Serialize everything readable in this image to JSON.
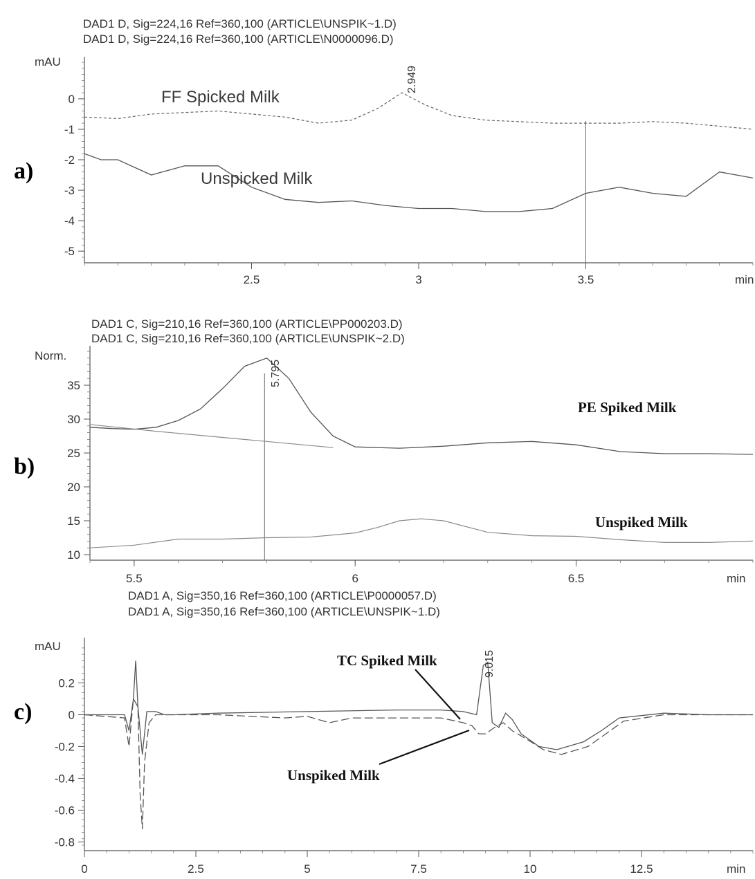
{
  "chart_data": [
    {
      "type": "line",
      "panel_label": "a)",
      "signal_lines": [
        "DAD1 D, Sig=224,16 Ref=360,100 (ARTICLE\\UNSPIK~1.D)",
        "DAD1 D, Sig=224,16 Ref=360,100 (ARTICLE\\N0000096.D)"
      ],
      "ylabel": "mAU",
      "xlabel": "min",
      "xlim": [
        2.0,
        4.0
      ],
      "ylim": [
        -5.2,
        1.2
      ],
      "x_ticks": [
        2.5,
        3,
        3.5
      ],
      "x_tick_labels": [
        "2.5",
        "3",
        "3.5"
      ],
      "y_ticks": [
        0,
        -1,
        -2,
        -3,
        -4,
        -5
      ],
      "y_tick_labels": [
        "0",
        "-1",
        "-2",
        "-3",
        "-4",
        "-5"
      ],
      "peaks": [
        {
          "rt": 2.949,
          "label": "2.949"
        }
      ],
      "marker_x": 3.5,
      "annotations": [
        "FF Spicked Milk",
        "Unspicked Milk"
      ],
      "series": [
        {
          "name": "FF Spicked Milk",
          "x": [
            2.0,
            2.1,
            2.2,
            2.3,
            2.4,
            2.5,
            2.6,
            2.7,
            2.8,
            2.88,
            2.95,
            3.02,
            3.1,
            3.2,
            3.3,
            3.4,
            3.5,
            3.6,
            3.7,
            3.8,
            3.9,
            4.0
          ],
          "y": [
            -0.6,
            -0.65,
            -0.5,
            -0.45,
            -0.4,
            -0.5,
            -0.6,
            -0.8,
            -0.7,
            -0.3,
            0.2,
            -0.2,
            -0.55,
            -0.7,
            -0.75,
            -0.8,
            -0.8,
            -0.8,
            -0.75,
            -0.8,
            -0.9,
            -1.0
          ]
        },
        {
          "name": "Unspicked Milk",
          "x": [
            2.0,
            2.05,
            2.1,
            2.2,
            2.3,
            2.4,
            2.5,
            2.6,
            2.7,
            2.8,
            2.9,
            3.0,
            3.1,
            3.2,
            3.3,
            3.4,
            3.5,
            3.6,
            3.7,
            3.8,
            3.9,
            4.0
          ],
          "y": [
            -1.8,
            -2.0,
            -2.0,
            -2.5,
            -2.2,
            -2.2,
            -2.9,
            -3.3,
            -3.4,
            -3.35,
            -3.5,
            -3.6,
            -3.6,
            -3.7,
            -3.7,
            -3.6,
            -3.1,
            -2.9,
            -3.1,
            -3.2,
            -2.4,
            -2.6
          ]
        }
      ]
    },
    {
      "type": "line",
      "panel_label": "b)",
      "signal_lines": [
        "DAD1 C, Sig=210,16 Ref=360,100 (ARTICLE\\PP000203.D)",
        "DAD1 C, Sig=210,16 Ref=360,100 (ARTICLE\\UNSPIK~2.D)"
      ],
      "ylabel": "Norm.",
      "xlabel": "min",
      "xlim": [
        5.4,
        6.9
      ],
      "ylim": [
        10,
        40
      ],
      "x_ticks": [
        5.5,
        6,
        6.5
      ],
      "x_tick_labels": [
        "5.5",
        "6",
        "6.5"
      ],
      "y_ticks": [
        35,
        30,
        25,
        20,
        15,
        10
      ],
      "y_tick_labels": [
        "35",
        "30",
        "25",
        "20",
        "15",
        "10"
      ],
      "peaks": [
        {
          "rt": 5.795,
          "label": "5.795"
        }
      ],
      "marker_x": 5.795,
      "annotations": [
        "PE  Spiked Milk",
        "Unspiked Milk"
      ],
      "series": [
        {
          "name": "PE  Spiked Milk",
          "x": [
            5.4,
            5.45,
            5.5,
            5.55,
            5.6,
            5.65,
            5.7,
            5.75,
            5.8,
            5.85,
            5.9,
            5.95,
            6.0,
            6.1,
            6.2,
            6.3,
            6.4,
            6.5,
            6.6,
            6.7,
            6.8,
            6.9
          ],
          "y": [
            28.8,
            28.6,
            28.5,
            28.8,
            29.8,
            31.5,
            34.5,
            37.8,
            39.0,
            36.0,
            31.0,
            27.5,
            25.9,
            25.7,
            26.0,
            26.5,
            26.7,
            26.2,
            25.2,
            24.9,
            24.9,
            24.8
          ]
        },
        {
          "name": "Baseline",
          "x": [
            5.4,
            5.55,
            5.7,
            5.85,
            5.95
          ],
          "y": [
            29.2,
            28.2,
            27.3,
            26.4,
            25.8
          ]
        },
        {
          "name": "Unspiked Milk",
          "x": [
            5.4,
            5.5,
            5.6,
            5.7,
            5.8,
            5.9,
            6.0,
            6.05,
            6.1,
            6.15,
            6.2,
            6.3,
            6.4,
            6.5,
            6.6,
            6.7,
            6.8,
            6.9
          ],
          "y": [
            11.0,
            11.4,
            12.3,
            12.3,
            12.5,
            12.6,
            13.2,
            14.0,
            15.0,
            15.3,
            15.0,
            13.3,
            12.8,
            12.7,
            12.2,
            11.8,
            11.8,
            12.0
          ]
        }
      ]
    },
    {
      "type": "line",
      "panel_label": "c)",
      "signal_lines": [
        "DAD1 A, Sig=350,16 Ref=360,100 (ARTICLE\\P0000057.D)",
        "DAD1 A, Sig=350,16 Ref=360,100 (ARTICLE\\UNSPIK~1.D)"
      ],
      "ylabel": "mAU",
      "xlabel": "min",
      "xlim": [
        0,
        15
      ],
      "ylim": [
        -0.82,
        0.45
      ],
      "x_ticks": [
        0,
        2.5,
        5,
        7.5,
        10,
        12.5
      ],
      "x_tick_labels": [
        "0",
        "2.5",
        "5",
        "7.5",
        "10",
        "12.5"
      ],
      "y_ticks": [
        0.2,
        0,
        -0.2,
        -0.4,
        -0.6,
        -0.8
      ],
      "y_tick_labels": [
        "0.2",
        "0",
        "-0.2",
        "-0.4",
        "-0.6",
        "-0.8"
      ],
      "peaks": [
        {
          "rt": 9.015,
          "label": "9.015"
        }
      ],
      "annotations": [
        "TC Spiked Milk",
        "Unspiked Milk"
      ],
      "series": [
        {
          "name": "TC Spiked Milk",
          "x": [
            0,
            0.9,
            1.0,
            1.1,
            1.15,
            1.2,
            1.3,
            1.4,
            1.6,
            1.8,
            2.0,
            3.0,
            5.0,
            7.0,
            8.0,
            8.5,
            8.8,
            8.95,
            9.05,
            9.15,
            9.3,
            9.45,
            9.6,
            9.8,
            10.2,
            10.6,
            11.2,
            11.6,
            12.0,
            13.0,
            14.0,
            15.0
          ],
          "y": [
            0,
            0,
            -0.1,
            0.1,
            0.34,
            0.05,
            -0.25,
            0.02,
            0.02,
            0.0,
            0.0,
            0.01,
            0.02,
            0.03,
            0.03,
            0.02,
            0.0,
            0.31,
            0.33,
            -0.05,
            -0.08,
            0.01,
            -0.03,
            -0.12,
            -0.2,
            -0.22,
            -0.17,
            -0.1,
            -0.02,
            0.01,
            0.0,
            0.0
          ]
        },
        {
          "name": "Unspiked Milk",
          "x": [
            0,
            0.9,
            1.0,
            1.1,
            1.2,
            1.25,
            1.3,
            1.35,
            1.45,
            1.6,
            2.0,
            3.0,
            4.5,
            5.0,
            5.5,
            6.0,
            7.0,
            8.0,
            8.5,
            8.7,
            8.85,
            9.0,
            9.2,
            9.4,
            9.6,
            9.9,
            10.3,
            10.7,
            11.3,
            11.7,
            12.1,
            13.0,
            14.0,
            15.0
          ],
          "y": [
            0,
            -0.02,
            -0.2,
            0.1,
            0.05,
            -0.5,
            -0.72,
            -0.3,
            -0.05,
            0.0,
            0.0,
            0.0,
            -0.02,
            -0.01,
            -0.05,
            -0.02,
            -0.02,
            -0.02,
            -0.05,
            -0.07,
            -0.12,
            -0.12,
            -0.08,
            -0.05,
            -0.1,
            -0.15,
            -0.22,
            -0.25,
            -0.2,
            -0.12,
            -0.04,
            0.0,
            0.0,
            0.0
          ]
        }
      ]
    }
  ]
}
